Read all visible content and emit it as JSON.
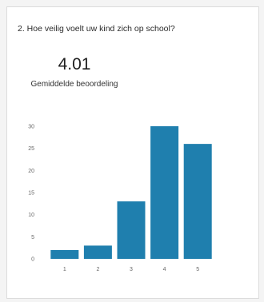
{
  "card": {
    "question": "2. Hoe veilig voelt uw kind zich op school?",
    "average_value": "4.01",
    "average_label": "Gemiddelde beoordeling"
  },
  "chart_data": {
    "type": "bar",
    "categories": [
      "1",
      "2",
      "3",
      "4",
      "5"
    ],
    "values": [
      2,
      3,
      13,
      30,
      26
    ],
    "title": "",
    "xlabel": "",
    "ylabel": "",
    "ylim": [
      0,
      30
    ],
    "yticks": [
      "0",
      "5",
      "10",
      "15",
      "20",
      "25",
      "30"
    ],
    "grid": false,
    "legend": "none",
    "bar_color": "#1f7fae"
  }
}
